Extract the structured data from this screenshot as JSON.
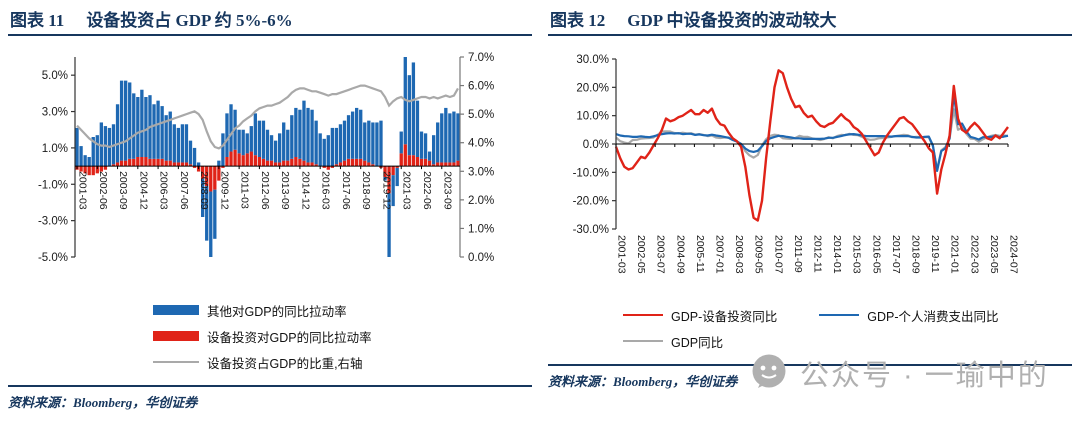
{
  "figures": [
    {
      "fig_label": "图表 11",
      "title": "设备投资占 GDP 约 5%-6%",
      "source": "资料来源：Bloomberg，华创证券"
    },
    {
      "fig_label": "图表 12",
      "title": "GDP 中设备投资的波动较大",
      "source": "资料来源：Bloomberg，华创证券"
    }
  ],
  "watermark": {
    "text": "公众号 · 一瑜中的",
    "icon": "wechat-official-account-icon",
    "color": "#B0B0B0"
  },
  "colors": {
    "navy": "#17375E",
    "blue": "#1E68B2",
    "red": "#E02318",
    "gray": "#A9A9A9"
  },
  "chart_data": [
    {
      "type": "bar",
      "title": "设备投资占 GDP 约 5%-6%",
      "grid": false,
      "legend_position": "bottom",
      "n_points": 95,
      "x_start": "2001-03",
      "x_end": "2024-09",
      "x_tick_every": 5,
      "x_tick_labels": [
        "2001-03",
        "2002-06",
        "2003-09",
        "2004-12",
        "2006-03",
        "2007-06",
        "2008-09",
        "2009-12",
        "2011-03",
        "2012-06",
        "2013-09",
        "2014-12",
        "2016-03",
        "2017-06",
        "2018-09",
        "2019-12",
        "2021-03",
        "2022-06",
        "2023-09"
      ],
      "left_axis": {
        "range": [
          -5,
          6
        ],
        "tick_values": [
          5,
          3,
          1,
          -1,
          -3,
          -5
        ],
        "tick_labels": [
          "5.0%",
          "3.0%",
          "1.0%",
          "-1.0%",
          "-3.0%",
          "-5.0%"
        ]
      },
      "right_axis": {
        "range": [
          0,
          7
        ],
        "tick_values": [
          7,
          6,
          5,
          4,
          3,
          2,
          1,
          0
        ],
        "tick_labels": [
          "7.0%",
          "6.0%",
          "5.0%",
          "4.0%",
          "3.0%",
          "2.0%",
          "1.0%",
          "0.0%"
        ]
      },
      "series": [
        {
          "name": "其他对GDP的同比拉动率",
          "type": "bar",
          "axis": "left",
          "color": "#1E68B2",
          "values": [
            2.1,
            1.1,
            0.6,
            0.5,
            1.6,
            1.7,
            2.4,
            2.2,
            2.1,
            2.2,
            3.2,
            4.4,
            4.4,
            4.2,
            3.6,
            3.3,
            3.7,
            3.3,
            3.5,
            3.0,
            3.2,
            2.9,
            2.5,
            2.7,
            2.1,
            1.9,
            2.1,
            2.1,
            1.3,
            1.0,
            0.2,
            -2.1,
            -3.0,
            -3.6,
            -2.7,
            0.3,
            1.8,
            2.4,
            2.6,
            2.2,
            1.3,
            1.4,
            1.1,
            1.4,
            2.3,
            2.0,
            2.1,
            1.7,
            1.4,
            1.2,
            1.6,
            2.1,
            1.7,
            2.4,
            2.7,
            2.7,
            3.3,
            3.0,
            2.9,
            2.4,
            1.8,
            1.5,
            1.7,
            2.1,
            2.0,
            2.1,
            2.2,
            2.4,
            2.6,
            2.8,
            2.7,
            2.1,
            2.3,
            2.3,
            2.4,
            2.5,
            -0.2,
            -7.5,
            -1.7,
            -1.0,
            1.2,
            11.0,
            4.4,
            5.1,
            3.1,
            1.5,
            1.4,
            0.5,
            1.6,
            2.2,
            2.7,
            3.0,
            2.7,
            2.8,
            2.6
          ]
        },
        {
          "name": "设备投资对GDP的同比拉动率",
          "type": "bar",
          "axis": "left",
          "color": "#E02318",
          "values": [
            -0.2,
            -0.3,
            -0.4,
            -0.5,
            -0.5,
            -0.4,
            -0.3,
            -0.2,
            0.0,
            0.1,
            0.2,
            0.3,
            0.3,
            0.4,
            0.4,
            0.5,
            0.5,
            0.5,
            0.4,
            0.4,
            0.4,
            0.4,
            0.3,
            0.3,
            0.2,
            0.2,
            0.2,
            0.2,
            0.1,
            -0.1,
            -0.3,
            -0.7,
            -1.1,
            -1.4,
            -1.3,
            -0.8,
            -0.1,
            0.5,
            0.8,
            0.9,
            0.7,
            0.6,
            0.7,
            0.8,
            0.6,
            0.5,
            0.4,
            0.3,
            0.3,
            0.2,
            0.2,
            0.3,
            0.3,
            0.4,
            0.5,
            0.4,
            0.3,
            0.2,
            0.2,
            0.1,
            0.0,
            -0.1,
            -0.2,
            -0.1,
            0.1,
            0.2,
            0.3,
            0.4,
            0.4,
            0.4,
            0.4,
            0.3,
            0.2,
            0.1,
            0.0,
            -0.1,
            -0.6,
            -1.5,
            -0.5,
            -0.1,
            0.7,
            1.2,
            0.6,
            0.6,
            0.5,
            0.4,
            0.4,
            0.3,
            0.1,
            0.2,
            0.2,
            0.2,
            0.2,
            0.2,
            0.3
          ]
        },
        {
          "name": "设备投资占GDP的比重,右轴",
          "type": "line",
          "axis": "right",
          "color": "#A9A9A9",
          "values": [
            4.6,
            4.45,
            4.3,
            4.15,
            4.05,
            3.95,
            3.9,
            3.9,
            3.85,
            3.9,
            3.95,
            4.0,
            4.05,
            4.15,
            4.25,
            4.35,
            4.4,
            4.45,
            4.55,
            4.6,
            4.65,
            4.7,
            4.75,
            4.8,
            4.85,
            4.9,
            4.95,
            5.0,
            5.05,
            5.1,
            5.0,
            4.8,
            4.4,
            4.05,
            3.85,
            3.8,
            3.9,
            4.1,
            4.3,
            4.5,
            4.6,
            4.75,
            4.85,
            4.95,
            5.1,
            5.2,
            5.25,
            5.3,
            5.3,
            5.35,
            5.4,
            5.5,
            5.6,
            5.75,
            5.85,
            5.9,
            5.9,
            5.85,
            5.8,
            5.8,
            5.75,
            5.7,
            5.65,
            5.7,
            5.7,
            5.75,
            5.8,
            5.85,
            5.9,
            5.95,
            6.0,
            6.0,
            5.95,
            5.9,
            5.85,
            5.8,
            5.6,
            5.3,
            5.45,
            5.55,
            5.6,
            5.5,
            5.45,
            5.5,
            5.55,
            5.6,
            5.6,
            5.55,
            5.6,
            5.55,
            5.6,
            5.65,
            5.6,
            5.65,
            5.9
          ]
        }
      ]
    },
    {
      "type": "line",
      "title": "GDP 中设备投资的波动较大",
      "grid": false,
      "legend_position": "bottom",
      "n_points": 95,
      "x_start": "2001-03",
      "x_end": "2024-07",
      "x_tick_labels": [
        "2001-03",
        "2002-05",
        "2003-07",
        "2004-09",
        "2005-11",
        "2007-01",
        "2008-03",
        "2009-05",
        "2010-07",
        "2011-09",
        "2012-11",
        "2014-01",
        "2015-03",
        "2016-05",
        "2017-07",
        "2018-09",
        "2019-11",
        "2021-01",
        "2022-03",
        "2023-05",
        "2024-07"
      ],
      "y_axis": {
        "range": [
          -30,
          30
        ],
        "tick_values": [
          30,
          20,
          10,
          0,
          -10,
          -20,
          -30
        ],
        "tick_labels": [
          "30.0%",
          "20.0%",
          "10.0%",
          "0.0%",
          "-10.0%",
          "-20.0%",
          "-30.0%"
        ]
      },
      "series": [
        {
          "name": "GDP-设备投资同比",
          "color": "#E02318",
          "values": [
            -1,
            -5,
            -8,
            -9,
            -8.5,
            -6.5,
            -4.5,
            -5,
            -3,
            -0.5,
            2,
            5,
            9,
            8,
            8.5,
            9.5,
            10,
            11,
            12,
            10.5,
            10.5,
            12,
            11,
            12.5,
            9,
            7,
            6.5,
            4,
            2,
            1,
            -1,
            -8,
            -18,
            -26,
            -27,
            -20,
            -5,
            8,
            20,
            26,
            25,
            20,
            16,
            13,
            13.5,
            11,
            9.5,
            10,
            8,
            6.5,
            6,
            7,
            7.5,
            9,
            10.5,
            9,
            8,
            6,
            5,
            3.5,
            1,
            -1.5,
            -4,
            -3,
            0.5,
            3,
            5,
            7,
            9,
            9.5,
            8,
            7,
            5,
            3,
            1,
            -1.5,
            -3,
            -17.5,
            -9,
            -3.5,
            3,
            20.5,
            9,
            5,
            4,
            6,
            7.5,
            6,
            4,
            2,
            1.5,
            3,
            2,
            4,
            6
          ]
        },
        {
          "name": "GDP-个人消费支出同比",
          "color": "#1E68B2",
          "values": [
            3.5,
            3.0,
            2.8,
            2.7,
            2.5,
            2.5,
            2.7,
            2.5,
            2.4,
            2.7,
            3.1,
            3.5,
            3.7,
            3.8,
            3.7,
            3.8,
            3.5,
            3.6,
            3.6,
            3.2,
            3.4,
            3.1,
            3.0,
            3.3,
            3.0,
            2.8,
            2.5,
            2.2,
            1.4,
            0.9,
            0.0,
            -1.6,
            -2.5,
            -2.8,
            -2.4,
            -0.8,
            1.1,
            2.0,
            2.5,
            2.9,
            2.8,
            2.5,
            2.3,
            2.0,
            2.0,
            1.8,
            1.8,
            1.8,
            1.8,
            1.8,
            1.9,
            2.2,
            2.2,
            2.5,
            2.8,
            3.2,
            3.4,
            3.5,
            3.3,
            3.0,
            2.8,
            2.8,
            2.8,
            2.8,
            2.8,
            2.7,
            2.6,
            2.8,
            2.8,
            2.8,
            2.8,
            2.5,
            2.3,
            2.3,
            2.5,
            2.6,
            -0.5,
            -9.5,
            -2.5,
            -1.5,
            2.0,
            17.5,
            7.0,
            7.2,
            4.5,
            2.5,
            2.1,
            1.6,
            2.4,
            2.4,
            2.5,
            2.9,
            2.4,
            2.6,
            2.9
          ]
        },
        {
          "name": "GDP同比",
          "color": "#A9A9A9",
          "values": [
            2.3,
            1.0,
            0.5,
            0.2,
            1.4,
            1.5,
            1.9,
            2.0,
            2.1,
            2.3,
            3.3,
            4.4,
            4.5,
            4.4,
            3.9,
            3.7,
            4.0,
            3.7,
            3.8,
            3.3,
            3.5,
            3.2,
            2.8,
            3.0,
            2.3,
            2.1,
            2.3,
            2.3,
            1.4,
            0.9,
            0.0,
            -2.5,
            -4.0,
            -4.8,
            -3.9,
            -0.5,
            1.7,
            2.9,
            3.3,
            3.1,
            2.0,
            1.9,
            1.8,
            2.1,
            2.9,
            2.5,
            2.5,
            2.0,
            1.7,
            1.4,
            1.8,
            2.4,
            2.0,
            2.8,
            3.2,
            3.1,
            3.6,
            3.2,
            3.1,
            2.5,
            1.8,
            1.5,
            1.6,
            2.0,
            2.1,
            2.3,
            2.5,
            2.8,
            3.0,
            3.2,
            3.1,
            2.4,
            2.5,
            2.4,
            2.4,
            2.4,
            -0.8,
            -9.0,
            -2.2,
            -1.1,
            1.9,
            12.2,
            5.0,
            5.7,
            3.6,
            1.9,
            1.8,
            0.8,
            1.7,
            2.4,
            2.9,
            3.2,
            2.9,
            3.0,
            2.9
          ]
        }
      ]
    }
  ]
}
